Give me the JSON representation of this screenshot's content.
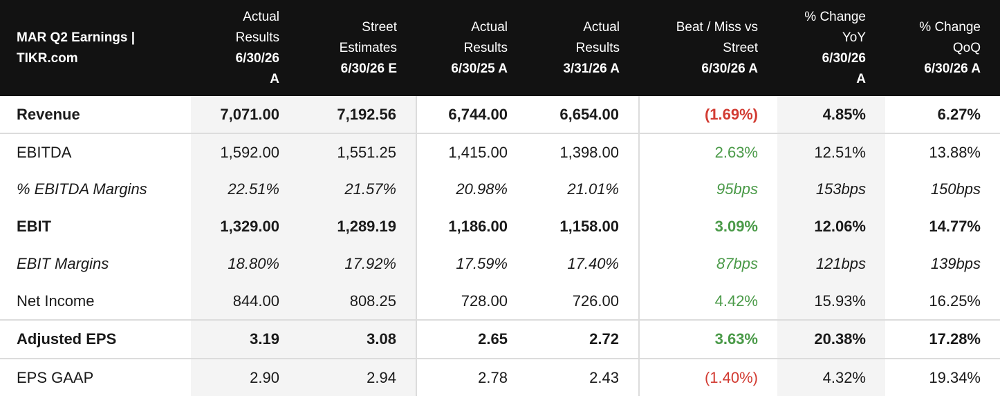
{
  "header": {
    "title_line1": "MAR Q2 Earnings |",
    "title_line2": "TIKR.com",
    "columns": [
      {
        "lines": [
          "Actual",
          "Results"
        ],
        "date_lines": [
          "6/30/26",
          "A"
        ]
      },
      {
        "lines": [
          "Street",
          "Estimates"
        ],
        "date_lines": [
          "6/30/26 E"
        ]
      },
      {
        "lines": [
          "Actual",
          "Results"
        ],
        "date_lines": [
          "6/30/25 A"
        ]
      },
      {
        "lines": [
          "Actual",
          "Results"
        ],
        "date_lines": [
          "3/31/26 A"
        ]
      },
      {
        "lines": [
          "Beat / Miss vs",
          "Street"
        ],
        "date_lines": [
          "6/30/26 A"
        ]
      },
      {
        "lines": [
          "% Change",
          "YoY"
        ],
        "date_lines": [
          "6/30/26",
          "A"
        ]
      },
      {
        "lines": [
          "% Change",
          "QoQ"
        ],
        "date_lines": [
          "6/30/26 A"
        ]
      }
    ]
  },
  "rows": [
    {
      "label": "Revenue",
      "cells": [
        "7,071.00",
        "7,192.56",
        "6,744.00",
        "6,654.00",
        "(1.69%)",
        "4.85%",
        "6.27%"
      ],
      "beat_status": "negative"
    },
    {
      "label": "EBITDA",
      "cells": [
        "1,592.00",
        "1,551.25",
        "1,415.00",
        "1,398.00",
        "2.63%",
        "12.51%",
        "13.88%"
      ],
      "beat_status": "positive"
    },
    {
      "label": "% EBITDA Margins",
      "cells": [
        "22.51%",
        "21.57%",
        "20.98%",
        "21.01%",
        "95bps",
        "153bps",
        "150bps"
      ],
      "beat_status": "positive"
    },
    {
      "label": "EBIT",
      "cells": [
        "1,329.00",
        "1,289.19",
        "1,186.00",
        "1,158.00",
        "3.09%",
        "12.06%",
        "14.77%"
      ],
      "beat_status": "positive"
    },
    {
      "label": "EBIT Margins",
      "cells": [
        "18.80%",
        "17.92%",
        "17.59%",
        "17.40%",
        "87bps",
        "121bps",
        "139bps"
      ],
      "beat_status": "positive"
    },
    {
      "label": "Net Income",
      "cells": [
        "844.00",
        "808.25",
        "728.00",
        "726.00",
        "4.42%",
        "15.93%",
        "16.25%"
      ],
      "beat_status": "positive"
    },
    {
      "label": "Adjusted EPS",
      "cells": [
        "3.19",
        "3.08",
        "2.65",
        "2.72",
        "3.63%",
        "20.38%",
        "17.28%"
      ],
      "beat_status": "positive"
    },
    {
      "label": "EPS GAAP",
      "cells": [
        "2.90",
        "2.94",
        "2.78",
        "2.43",
        "(1.40%)",
        "4.32%",
        "19.34%"
      ],
      "beat_status": "negative"
    }
  ],
  "colors": {
    "header_bg": "#121212",
    "negative": "#d23b32",
    "positive": "#4a9a48",
    "shade": "#f4f4f4"
  }
}
